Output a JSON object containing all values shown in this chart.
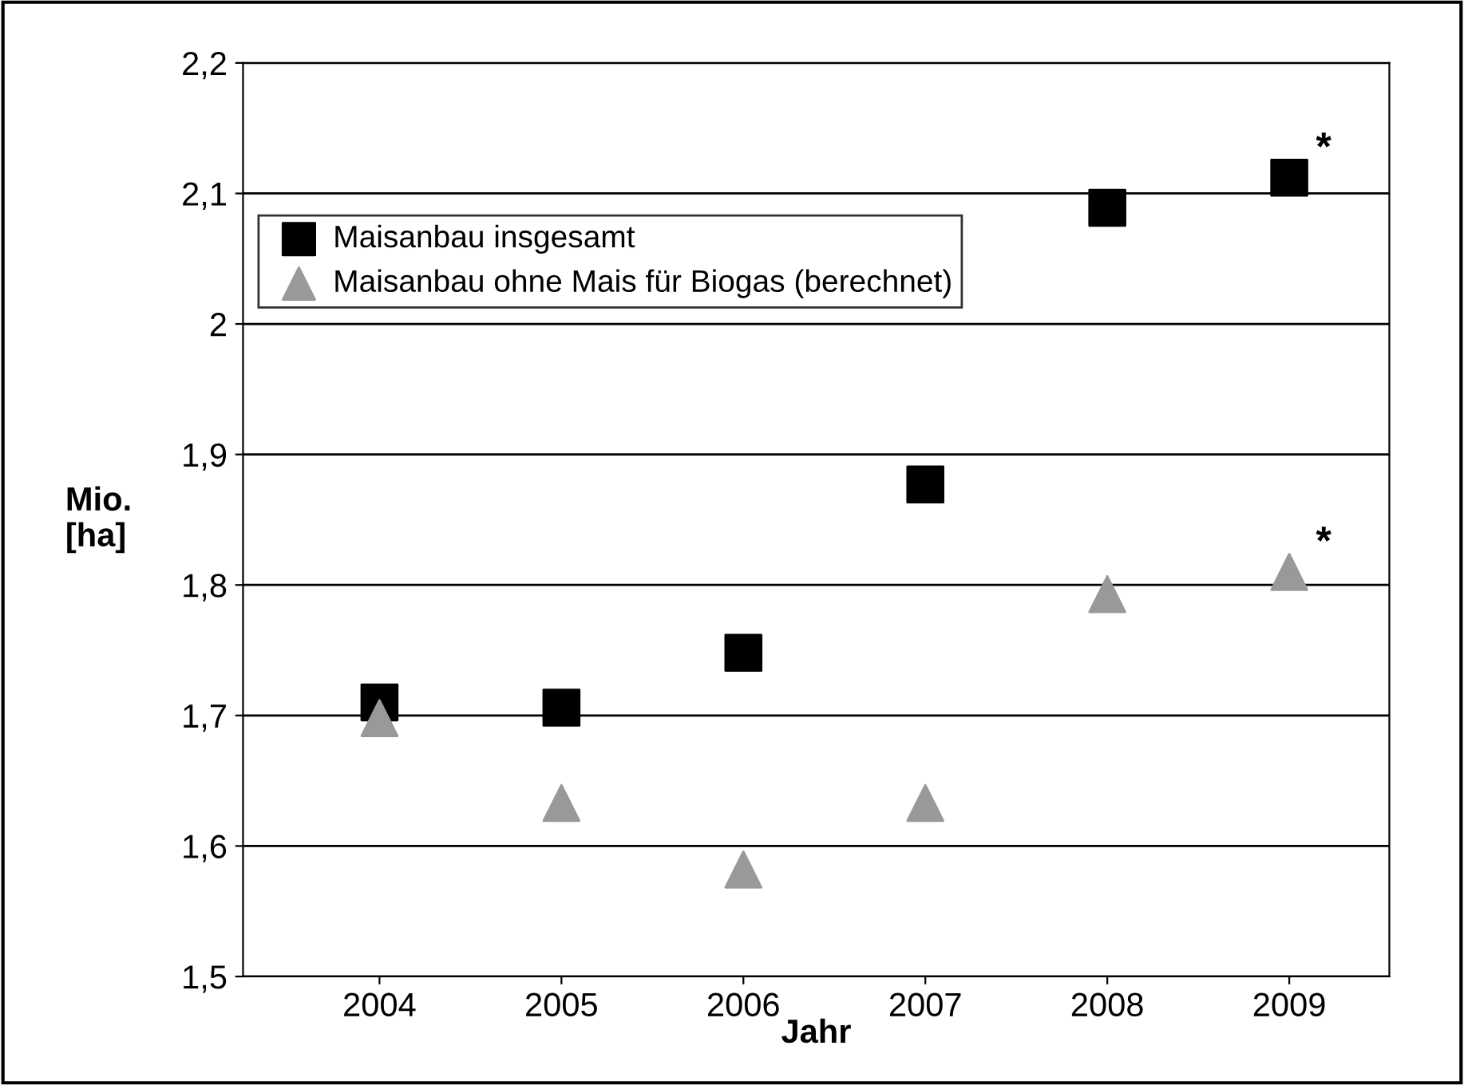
{
  "chart_data": {
    "type": "scatter",
    "xlabel": "Jahr",
    "ylabel": "Mio.\n[ha]",
    "categories": [
      "2004",
      "2005",
      "2006",
      "2007",
      "2008",
      "2009"
    ],
    "series": [
      {
        "name": "Maisanbau insgesamt",
        "color": "#000000",
        "marker": "square",
        "values": [
          1.71,
          1.706,
          1.748,
          1.877,
          2.089,
          2.112
        ]
      },
      {
        "name": "Maisanbau ohne Mais für Biogas (berechnet)",
        "color": "#999999",
        "marker": "triangle",
        "values": [
          1.698,
          1.633,
          1.582,
          1.633,
          1.793,
          1.81
        ]
      }
    ],
    "annotations": [
      {
        "text": "*",
        "x": "2009",
        "y": 2.112
      },
      {
        "text": "*",
        "x": "2009",
        "y": 1.81
      }
    ],
    "ylim": [
      1.5,
      2.2
    ],
    "yticks": [
      {
        "value": 1.5,
        "label": "1,5"
      },
      {
        "value": 1.6,
        "label": "1,6"
      },
      {
        "value": 1.7,
        "label": "1,7"
      },
      {
        "value": 1.8,
        "label": "1,8"
      },
      {
        "value": 1.9,
        "label": "1,9"
      },
      {
        "value": 2.0,
        "label": "2"
      },
      {
        "value": 2.1,
        "label": "2,1"
      },
      {
        "value": 2.2,
        "label": "2,2"
      }
    ],
    "grid": "y",
    "legend": "top left"
  }
}
